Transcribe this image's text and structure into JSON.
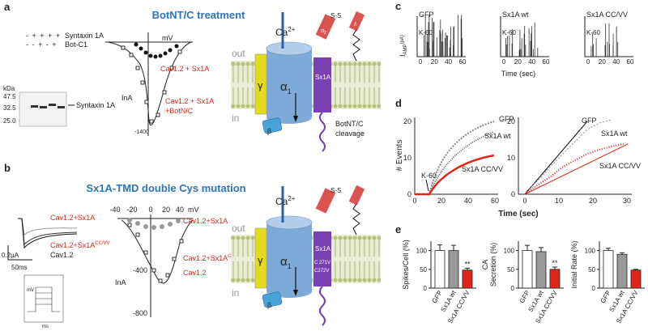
{
  "panel_a": {
    "label": "a",
    "title": "BotNT/C treatment",
    "gel": {
      "kda": "kDa",
      "markers": [
        "47.5",
        "32.5",
        "25.0"
      ],
      "row1_signs": "- + + + +",
      "row1": "Syntaxin 1A",
      "row2_signs": "- - + - +",
      "row2": "Bot-C1",
      "band": "Syntaxin 1A"
    },
    "iv": {
      "x_unit": "mV",
      "y_unit": "InA",
      "y_min": "-1400",
      "legend1": "Cav1.2 + Sx1A",
      "legend2": [
        "Cav1.2 + Sx1A",
        "+BotN/C"
      ]
    },
    "diagram": {
      "ion": "Ca",
      "ion_charge": "2+",
      "out": "out",
      "in": "in",
      "gamma": "γ",
      "alpha1": "α",
      "alpha1_sub": "1",
      "beta": "β",
      "alpha2": "α",
      "alpha2_sub": "2",
      "delta": "δ",
      "disulfide": "S-S",
      "sx": "Sx1A",
      "cleavage": [
        "BotNT/C",
        "cleavage"
      ]
    }
  },
  "panel_b": {
    "label": "b",
    "title": "Sx1A-TMD double Cys mutation",
    "traces": {
      "legend1": "Cav1.2+Sx1A",
      "legend2": "Cav1.2+Sx1A",
      "legend2_sup": "CC/VV",
      "legend3": "Cav1.2",
      "scale_i": "0.2µA",
      "scale_t": "50ms",
      "inset_y": "mV",
      "inset_x": "ms"
    },
    "iv": {
      "x_ticks": [
        "-40",
        "-20",
        "0",
        "20",
        "40"
      ],
      "x_unit": "mV",
      "y_unit": "InA",
      "y_ticks": [
        "-400",
        "-800"
      ],
      "legend1": "Cav1.2+Sx1A",
      "legend2": "Cav1.2+Sx1A",
      "legend2_sup": "CC/VV",
      "legend3": "Cav1.2"
    },
    "diagram": {
      "ion": "Ca",
      "ion_charge": "2+",
      "out": "out",
      "in": "in",
      "gamma": "γ",
      "alpha1": "α",
      "alpha1_sub": "1",
      "beta": "β",
      "disulfide": "S-S",
      "sx": "Sx1A",
      "mut": [
        "C 271V",
        "C272V"
      ]
    }
  },
  "panel_c": {
    "label": "c",
    "y_label": "I",
    "y_sub": "AMP",
    "y_unit": "(pA)",
    "groups": [
      "GFP",
      "Sx1A wt",
      "Sx1A CC/VV"
    ],
    "stimulus": "K-60",
    "x_ticks": [
      "0",
      "20",
      "40",
      "60"
    ],
    "x_label": "Time (sec)"
  },
  "panel_d": {
    "label": "d",
    "y_label": "# Events",
    "y_ticks": [
      "0",
      "10",
      "20"
    ],
    "left_x_ticks": [
      "0",
      "20",
      "40",
      "60"
    ],
    "right_x_ticks": [
      "0",
      "10",
      "20",
      "30"
    ],
    "groups": [
      "GFP",
      "Sx1A wt",
      "Sx1A CC/VV"
    ],
    "stimulus": "K-60",
    "x_label": "Time (sec)"
  },
  "panel_e": {
    "label": "e",
    "ylim": [
      0,
      125
    ],
    "yticks": [
      0,
      50,
      100
    ],
    "categories": [
      "GFP",
      "Sx1A wt",
      "Sx1A CC/VV"
    ],
    "colors": [
      "#ffffff",
      "#999999",
      "#e0261b"
    ],
    "charts": [
      {
        "y_label": [
          "Spikes/Cell (%)"
        ],
        "values": [
          100,
          100,
          48
        ],
        "errors": [
          15,
          14,
          5
        ],
        "annotation": "**"
      },
      {
        "y_label": [
          "CA",
          "Secretion (%)"
        ],
        "values": [
          100,
          97,
          50
        ],
        "errors": [
          14,
          11,
          6
        ],
        "annotation": "**"
      },
      {
        "y_label": [
          "Initial Rate (%)"
        ],
        "values": [
          100,
          90,
          48
        ],
        "errors": [
          6,
          4,
          2
        ]
      }
    ]
  }
}
